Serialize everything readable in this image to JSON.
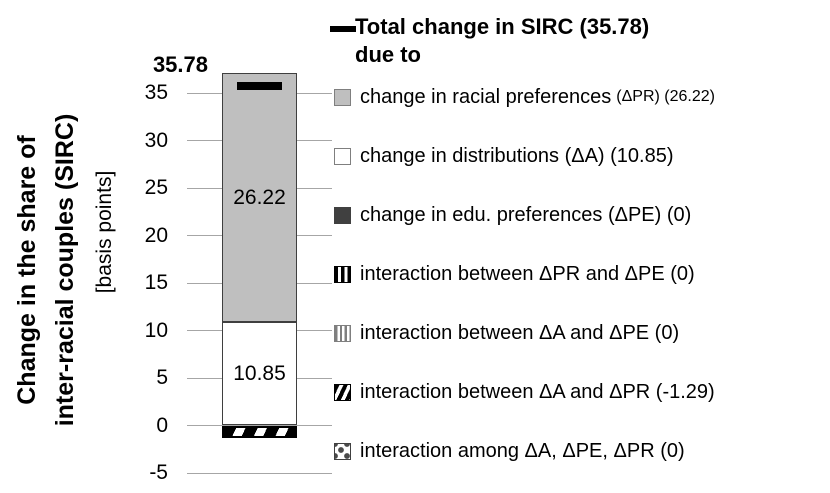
{
  "chart_data": {
    "type": "bar",
    "subtype": "stacked decomposition bar with total marker",
    "categories": [
      "Total change in SIRC"
    ],
    "total": {
      "value": 35.78,
      "label": "35.78"
    },
    "series": [
      {
        "name": "change in racial preferences (ΔPR)",
        "value": 26.22,
        "bar_label": "26.22",
        "pattern": "solid-gray"
      },
      {
        "name": "change in distributions (ΔA)",
        "value": 10.85,
        "bar_label": "10.85",
        "pattern": "solid-white"
      },
      {
        "name": "change in edu. preferences (ΔPE)",
        "value": 0,
        "bar_label": "",
        "pattern": "solid-dark"
      },
      {
        "name": "interaction between ΔPR and ΔPE",
        "value": 0,
        "bar_label": "",
        "pattern": "vertical-black-stripes"
      },
      {
        "name": "interaction between ΔA and ΔPE",
        "value": 0,
        "bar_label": "",
        "pattern": "vertical-gray-stripes"
      },
      {
        "name": "interaction between ΔA and ΔPR",
        "value": -1.29,
        "bar_label": "",
        "pattern": "diagonal-black-stripes"
      },
      {
        "name": "interaction among ΔA, ΔPE, ΔPR",
        "value": 0,
        "bar_label": "",
        "pattern": "confetti-dots"
      }
    ],
    "yticks": [
      35,
      30,
      25,
      20,
      15,
      10,
      5,
      0,
      -5
    ],
    "ylim": [
      -7.5,
      39.5
    ],
    "grid": true,
    "legend_position": "right",
    "ylabel_bold_lines": [
      "Change in the share of",
      "inter-racial couples (SIRC)"
    ],
    "ylabel_unit_line": "[basis points]"
  },
  "legend": {
    "header_line1": "Total change in SIRC (35.78)",
    "header_line2": "due to",
    "items": [
      {
        "swatch": "solid-gray",
        "text": "change in racial preferences",
        "suffix": "(ΔPR) (26.22)"
      },
      {
        "swatch": "solid-white",
        "text": "change in distributions (ΔA) (10.85)",
        "suffix": ""
      },
      {
        "swatch": "solid-dark",
        "text": "change in edu. preferences (ΔPE) (0)",
        "suffix": ""
      },
      {
        "swatch": "vertical-black-stripes",
        "text": "interaction between ΔPR and ΔPE (0)",
        "suffix": ""
      },
      {
        "swatch": "vertical-gray-stripes",
        "text": "interaction between ΔA and ΔPE (0)",
        "suffix": ""
      },
      {
        "swatch": "diagonal-black-stripes",
        "text": "interaction between ΔA and ΔPR (-1.29)",
        "suffix": ""
      },
      {
        "swatch": "confetti-dots",
        "text": "interaction among ΔA, ΔPE, ΔPR (0)",
        "suffix": ""
      }
    ]
  },
  "colors": {
    "bar_gray_fill": "#bfbfbf",
    "bar_dark_fill": "#404040",
    "stripe_gray": "#7f7f7f",
    "gridline": "#a6a6a6",
    "marker_black": "#000000",
    "background": "#ffffff"
  }
}
